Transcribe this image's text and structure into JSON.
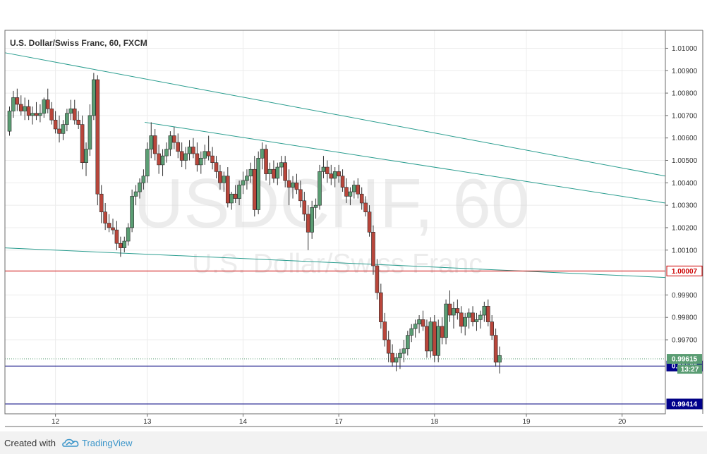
{
  "chart_data": {
    "type": "candlestick",
    "title": "U.S. Dollar/Swiss Franc, 60, FXCM",
    "watermark": {
      "symbol": "USDCHF, 60",
      "name": "U.S. Dollar/Swiss Franc"
    },
    "y_ticks": [
      "1.01000",
      "1.00900",
      "1.00800",
      "1.00700",
      "1.00600",
      "1.00500",
      "1.00400",
      "1.00300",
      "1.00200",
      "1.00100",
      "0.99900",
      "0.99800",
      "0.99700"
    ],
    "ylim": [
      0.9937,
      1.0108
    ],
    "x_ticks": [
      {
        "label": "12",
        "x": 12
      },
      {
        "label": "13",
        "x": 36
      },
      {
        "label": "14",
        "x": 61
      },
      {
        "label": "17",
        "x": 86
      },
      {
        "label": "18",
        "x": 111
      },
      {
        "label": "19",
        "x": 135
      },
      {
        "label": "20",
        "x": 160
      }
    ],
    "x_end": 168,
    "horizontal_levels": [
      {
        "label": "1.00007",
        "value": 1.00007,
        "color": "#cc0000",
        "badge_bg": "#ffffff"
      },
      {
        "label": "0.99583",
        "value": 0.99583,
        "color": "#00007f",
        "badge_bg": "#00008c"
      },
      {
        "label": "0.99414",
        "value": 0.99414,
        "color": "#00007f",
        "badge_bg": "#00008c"
      }
    ],
    "current": {
      "label": "0.99615",
      "value": 0.99615,
      "countdown": "13:27",
      "color": "#5a9d73"
    },
    "trendlines": [
      {
        "from": [
          0,
          1.0098
        ],
        "to": [
          172.5,
          1.0043
        ]
      },
      {
        "from": [
          36.5,
          1.0067
        ],
        "to": [
          172.5,
          1.0031
        ]
      },
      {
        "from": [
          0,
          1.0011
        ],
        "to": [
          172.5,
          0.99978
        ]
      }
    ],
    "up_color": "#5a9d73",
    "down_color": "#b9463b",
    "candles": [
      [
        1.0063,
        1.0074,
        1.0061,
        1.0072
      ],
      [
        1.0072,
        1.0081,
        1.0069,
        1.0078
      ],
      [
        1.0078,
        1.0082,
        1.0072,
        1.0075
      ],
      [
        1.0075,
        1.0079,
        1.007,
        1.0072
      ],
      [
        1.0072,
        1.0078,
        1.0068,
        1.0074
      ],
      [
        1.0074,
        1.0077,
        1.0068,
        1.007
      ],
      [
        1.007,
        1.0074,
        1.0066,
        1.0071
      ],
      [
        1.0071,
        1.0076,
        1.0068,
        1.007
      ],
      [
        1.007,
        1.0075,
        1.0067,
        1.0071
      ],
      [
        1.0071,
        1.0078,
        1.0069,
        1.0077
      ],
      [
        1.0077,
        1.0082,
        1.0071,
        1.0073
      ],
      [
        1.0073,
        1.0076,
        1.0066,
        1.0068
      ],
      [
        1.0068,
        1.0072,
        1.0062,
        1.0064
      ],
      [
        1.0064,
        1.007,
        1.0058,
        1.0062
      ],
      [
        1.0062,
        1.0068,
        1.0059,
        1.0066
      ],
      [
        1.0066,
        1.0073,
        1.0063,
        1.0071
      ],
      [
        1.0071,
        1.0077,
        1.0068,
        1.0073
      ],
      [
        1.0073,
        1.0077,
        1.0066,
        1.0068
      ],
      [
        1.0068,
        1.0072,
        1.0064,
        1.0066
      ],
      [
        1.0066,
        1.007,
        1.0046,
        1.0049
      ],
      [
        1.0049,
        1.0058,
        1.0043,
        1.0055
      ],
      [
        1.0055,
        1.0075,
        1.0052,
        1.007
      ],
      [
        1.007,
        1.0089,
        1.0068,
        1.0086
      ],
      [
        1.0086,
        1.0088,
        1.003,
        1.0035
      ],
      [
        1.0035,
        1.0039,
        1.0022,
        1.0027
      ],
      [
        1.0027,
        1.0031,
        1.0019,
        1.0022
      ],
      [
        1.0022,
        1.0026,
        1.0018,
        1.002
      ],
      [
        1.002,
        1.0024,
        1.0017,
        1.0019
      ],
      [
        1.0019,
        1.0023,
        1.001,
        1.0013
      ],
      [
        1.0013,
        1.0016,
        1.0007,
        1.0011
      ],
      [
        1.0011,
        1.0016,
        1.0009,
        1.0014
      ],
      [
        1.0014,
        1.0022,
        1.0012,
        1.002
      ],
      [
        1.002,
        1.0037,
        1.0018,
        1.0034
      ],
      [
        1.0034,
        1.0039,
        1.003,
        1.0036
      ],
      [
        1.0036,
        1.0042,
        1.0033,
        1.004
      ],
      [
        1.004,
        1.0046,
        1.0037,
        1.0043
      ],
      [
        1.0043,
        1.0058,
        1.004,
        1.0055
      ],
      [
        1.0055,
        1.0067,
        1.0051,
        1.0061
      ],
      [
        1.0061,
        1.0064,
        1.005,
        1.0053
      ],
      [
        1.0053,
        1.0057,
        1.0044,
        1.0048
      ],
      [
        1.0048,
        1.0055,
        1.0043,
        1.0052
      ],
      [
        1.0052,
        1.0058,
        1.0049,
        1.0055
      ],
      [
        1.0055,
        1.0063,
        1.0052,
        1.0061
      ],
      [
        1.0061,
        1.0065,
        1.0055,
        1.0058
      ],
      [
        1.0058,
        1.0062,
        1.0051,
        1.0054
      ],
      [
        1.0054,
        1.0058,
        1.0047,
        1.005
      ],
      [
        1.005,
        1.0056,
        1.0046,
        1.0053
      ],
      [
        1.0053,
        1.0059,
        1.005,
        1.0056
      ],
      [
        1.0056,
        1.006,
        1.0051,
        1.0053
      ],
      [
        1.0053,
        1.0058,
        1.0045,
        1.0048
      ],
      [
        1.0048,
        1.0054,
        1.0044,
        1.0051
      ],
      [
        1.0051,
        1.0057,
        1.0048,
        1.0054
      ],
      [
        1.0054,
        1.0061,
        1.005,
        1.0052
      ],
      [
        1.0052,
        1.0056,
        1.0046,
        1.0049
      ],
      [
        1.0049,
        1.0052,
        1.0042,
        1.0045
      ],
      [
        1.0045,
        1.0048,
        1.0037,
        1.004
      ],
      [
        1.004,
        1.0045,
        1.0036,
        1.0043
      ],
      [
        1.0043,
        1.0047,
        1.0029,
        1.0031
      ],
      [
        1.0031,
        1.0036,
        1.0028,
        1.0035
      ],
      [
        1.0035,
        1.0039,
        1.0031,
        1.0033
      ],
      [
        1.0033,
        1.0041,
        1.003,
        1.0039
      ],
      [
        1.0039,
        1.0045,
        1.0035,
        1.0041
      ],
      [
        1.0041,
        1.0046,
        1.0037,
        1.0043
      ],
      [
        1.0043,
        1.0049,
        1.004,
        1.0046
      ],
      [
        1.0046,
        1.0052,
        1.0025,
        1.0028
      ],
      [
        1.0028,
        1.0054,
        1.0026,
        1.0051
      ],
      [
        1.0051,
        1.0058,
        1.0046,
        1.0055
      ],
      [
        1.0055,
        1.0057,
        1.0041,
        1.0044
      ],
      [
        1.0044,
        1.0049,
        1.0039,
        1.0046
      ],
      [
        1.0046,
        1.005,
        1.004,
        1.0042
      ],
      [
        1.0042,
        1.0049,
        1.0039,
        1.0047
      ],
      [
        1.0047,
        1.0052,
        1.0043,
        1.0049
      ],
      [
        1.0049,
        1.0052,
        1.0038,
        1.0041
      ],
      [
        1.0041,
        1.0046,
        1.003,
        1.0038
      ],
      [
        1.0038,
        1.0043,
        1.0033,
        1.004
      ],
      [
        1.004,
        1.0044,
        1.0035,
        1.0037
      ],
      [
        1.0037,
        1.0041,
        1.0029,
        1.0032
      ],
      [
        1.0032,
        1.0036,
        1.0023,
        1.0026
      ],
      [
        1.0026,
        1.003,
        1.001,
        1.0018
      ],
      [
        1.0018,
        1.0032,
        1.0015,
        1.0029
      ],
      [
        1.0029,
        1.0033,
        1.0024,
        1.003
      ],
      [
        1.003,
        1.0048,
        1.0028,
        1.0045
      ],
      [
        1.0045,
        1.0052,
        1.0042,
        1.0047
      ],
      [
        1.0047,
        1.005,
        1.004,
        1.0044
      ],
      [
        1.0044,
        1.0048,
        1.0039,
        1.0042
      ],
      [
        1.0042,
        1.0047,
        1.0038,
        1.0045
      ],
      [
        1.0045,
        1.0048,
        1.004,
        1.0043
      ],
      [
        1.0043,
        1.0046,
        1.0036,
        1.0038
      ],
      [
        1.0038,
        1.0042,
        1.0031,
        1.0034
      ],
      [
        1.0034,
        1.0038,
        1.003,
        1.0036
      ],
      [
        1.0036,
        1.0041,
        1.0033,
        1.0039
      ],
      [
        1.0039,
        1.0042,
        1.0033,
        1.0035
      ],
      [
        1.0035,
        1.0038,
        1.0028,
        1.0031
      ],
      [
        1.0031,
        1.0034,
        1.0025,
        1.0027
      ],
      [
        1.0027,
        1.003,
        1.0016,
        1.0018
      ],
      [
        1.0018,
        1.0021,
        0.9999,
        1.0003
      ],
      [
        1.0003,
        1.0006,
        0.9988,
        0.9991
      ],
      [
        0.9991,
        0.9995,
        0.9975,
        0.9978
      ],
      [
        0.9978,
        0.9982,
        0.9967,
        0.997
      ],
      [
        0.997,
        0.9974,
        0.996,
        0.9964
      ],
      [
        0.9964,
        0.9968,
        0.9958,
        0.996
      ],
      [
        0.996,
        0.9964,
        0.9956,
        0.9962
      ],
      [
        0.9962,
        0.9966,
        0.9957,
        0.9964
      ],
      [
        0.9964,
        0.997,
        0.996,
        0.9966
      ],
      [
        0.9966,
        0.9974,
        0.9963,
        0.9972
      ],
      [
        0.9972,
        0.9977,
        0.9969,
        0.9975
      ],
      [
        0.9975,
        0.9979,
        0.9971,
        0.9977
      ],
      [
        0.9977,
        0.9981,
        0.9973,
        0.9979
      ],
      [
        0.9979,
        0.9983,
        0.9974,
        0.9976
      ],
      [
        0.9976,
        0.9979,
        0.9962,
        0.9965
      ],
      [
        0.9965,
        0.998,
        0.9962,
        0.9978
      ],
      [
        0.9978,
        0.9981,
        0.996,
        0.9963
      ],
      [
        0.9963,
        0.9979,
        0.996,
        0.9976
      ],
      [
        0.9976,
        0.998,
        0.9968,
        0.9971
      ],
      [
        0.9971,
        0.9988,
        0.9968,
        0.9986
      ],
      [
        0.9986,
        0.9992,
        0.9978,
        0.9981
      ],
      [
        0.9981,
        0.9987,
        0.9975,
        0.9984
      ],
      [
        0.9984,
        0.9988,
        0.9979,
        0.9982
      ],
      [
        0.9982,
        0.9985,
        0.9973,
        0.9976
      ],
      [
        0.9976,
        0.9982,
        0.9972,
        0.998
      ],
      [
        0.998,
        0.9984,
        0.9975,
        0.9982
      ],
      [
        0.9982,
        0.9985,
        0.9976,
        0.9978
      ],
      [
        0.9978,
        0.9982,
        0.9974,
        0.9979
      ],
      [
        0.9979,
        0.9983,
        0.9975,
        0.9981
      ],
      [
        0.9981,
        0.9987,
        0.9978,
        0.9985
      ],
      [
        0.9985,
        0.9988,
        0.9976,
        0.9978
      ],
      [
        0.9978,
        0.9981,
        0.997,
        0.9972
      ],
      [
        0.9972,
        0.9975,
        0.9958,
        0.996
      ],
      [
        0.996,
        0.9967,
        0.9955,
        0.9963
      ]
    ]
  },
  "footer": {
    "created_with": "Created with",
    "brand": "TradingView"
  }
}
